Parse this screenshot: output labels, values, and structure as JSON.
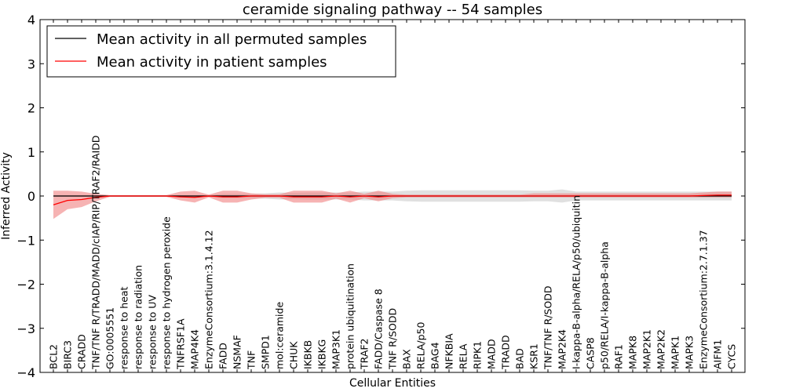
{
  "chart_data": {
    "type": "line",
    "title": "ceramide signaling pathway -- 54 samples",
    "xlabel": "Cellular Entities",
    "ylabel": "Inferred Activity",
    "ylim": [
      -4,
      4
    ],
    "yticks": [
      -4,
      -3,
      -2,
      -1,
      0,
      1,
      2,
      3,
      4
    ],
    "ytick_labels": [
      "−4",
      "−3",
      "−2",
      "−1",
      "0",
      "1",
      "2",
      "3",
      "4"
    ],
    "legend_position": "top-left",
    "categories": [
      "BCL2",
      "BIRC3",
      "CRADD",
      "TNF/TNF R/TRADD/MADD/cIAP/RIP/TRAF2/RAIDD",
      "GO:0005551",
      "response to heat",
      "response to radiation",
      "response to UV",
      "response to hydrogen peroxide",
      "TNFRSF1A",
      "MAP4K4",
      "EnzymeConsortium:3.1.4.12",
      "FADD",
      "NSMAF",
      "TNF",
      "SMPD1",
      "mol:ceramide",
      "CHUK",
      "IKBKB",
      "IKBKG",
      "MAP3K1",
      "protein ubiquitination",
      "TRAF2",
      "FADD/Caspase 8",
      "TNF R/SODD",
      "BAX",
      "RELA/p50",
      "BAG4",
      "NFKBIA",
      "RELA",
      "RIPK1",
      "MADD",
      "TRADD",
      "BAD",
      "KSR1",
      "TNF/TNF R/SODD",
      "MAP2K4",
      "I-kappa-B-alpha/RELA/p50/ubiquitin",
      "CASP8",
      "p50/RELA/I-kappa-B-alpha",
      "RAF1",
      "MAPK8",
      "MAP2K1",
      "MAP2K2",
      "MAPK1",
      "MAPK3",
      "EnzymeConsortium:2.7.1.37",
      "AIFM1",
      "CYCS"
    ],
    "series": [
      {
        "name": "Mean activity in all permuted samples",
        "color": "#000000",
        "values": [
          0,
          0,
          0,
          0,
          0,
          0,
          0,
          0,
          0,
          0,
          0,
          0,
          0,
          0,
          0,
          0,
          0,
          0,
          0,
          0,
          0,
          0,
          0,
          0,
          0,
          0,
          0,
          0,
          0,
          0,
          0,
          0,
          0,
          0,
          0,
          0,
          0,
          0,
          0,
          0,
          0,
          0,
          0,
          0,
          0,
          0,
          0,
          0,
          0
        ],
        "band_low": [
          -0.02,
          -0.02,
          -0.02,
          -0.02,
          -0.01,
          -0.01,
          -0.01,
          -0.01,
          -0.01,
          -0.02,
          -0.02,
          -0.02,
          -0.05,
          -0.05,
          -0.05,
          -0.06,
          -0.08,
          -0.07,
          -0.08,
          -0.08,
          -0.08,
          -0.08,
          -0.1,
          -0.1,
          -0.1,
          -0.12,
          -0.13,
          -0.13,
          -0.13,
          -0.13,
          -0.13,
          -0.13,
          -0.13,
          -0.13,
          -0.12,
          -0.12,
          -0.15,
          -0.1,
          -0.1,
          -0.1,
          -0.1,
          -0.1,
          -0.1,
          -0.1,
          -0.1,
          -0.1,
          -0.1,
          -0.1,
          -0.1
        ],
        "band_high": [
          0.02,
          0.02,
          0.02,
          0.02,
          0.01,
          0.01,
          0.01,
          0.01,
          0.01,
          0.02,
          0.02,
          0.02,
          0.05,
          0.05,
          0.05,
          0.06,
          0.08,
          0.07,
          0.08,
          0.08,
          0.08,
          0.08,
          0.1,
          0.1,
          0.1,
          0.12,
          0.13,
          0.13,
          0.13,
          0.13,
          0.13,
          0.13,
          0.13,
          0.13,
          0.12,
          0.12,
          0.15,
          0.1,
          0.1,
          0.1,
          0.1,
          0.1,
          0.1,
          0.1,
          0.1,
          0.1,
          0.1,
          0.1,
          0.1
        ],
        "band_color": "#d6d6d6"
      },
      {
        "name": "Mean activity in patient samples",
        "color": "#ff0000",
        "values": [
          -0.2,
          -0.1,
          -0.08,
          -0.03,
          0,
          0,
          0,
          0,
          0,
          -0.02,
          -0.03,
          0,
          -0.02,
          -0.02,
          0,
          0,
          0,
          -0.02,
          -0.02,
          -0.02,
          0,
          -0.02,
          0,
          -0.02,
          0,
          0,
          0,
          0,
          0,
          0,
          0,
          0,
          0,
          0,
          0,
          0,
          0,
          0,
          0,
          0,
          0,
          0,
          0,
          0,
          0,
          0,
          0.01,
          0.02,
          0.02
        ],
        "band_low": [
          -0.52,
          -0.3,
          -0.25,
          -0.12,
          -0.02,
          -0.02,
          -0.02,
          -0.02,
          -0.02,
          -0.1,
          -0.15,
          -0.03,
          -0.15,
          -0.15,
          -0.08,
          -0.04,
          -0.04,
          -0.15,
          -0.15,
          -0.15,
          -0.06,
          -0.15,
          -0.05,
          -0.12,
          -0.05,
          -0.03,
          -0.03,
          -0.03,
          -0.03,
          -0.03,
          -0.03,
          -0.03,
          -0.03,
          -0.03,
          -0.03,
          -0.03,
          -0.03,
          -0.03,
          -0.03,
          -0.03,
          -0.03,
          -0.03,
          -0.03,
          -0.03,
          -0.03,
          -0.03,
          -0.03,
          -0.03,
          -0.03
        ],
        "band_high": [
          0.12,
          0.12,
          0.1,
          0.05,
          0.02,
          0.02,
          0.02,
          0.02,
          0.02,
          0.1,
          0.12,
          0.03,
          0.12,
          0.12,
          0.06,
          0.04,
          0.04,
          0.12,
          0.12,
          0.12,
          0.06,
          0.12,
          0.05,
          0.12,
          0.05,
          0.03,
          0.03,
          0.03,
          0.03,
          0.03,
          0.03,
          0.03,
          0.03,
          0.03,
          0.06,
          0.06,
          0.06,
          0.06,
          0.06,
          0.06,
          0.06,
          0.06,
          0.06,
          0.06,
          0.06,
          0.06,
          0.08,
          0.1,
          0.1
        ],
        "band_color": "#f08080"
      }
    ]
  }
}
